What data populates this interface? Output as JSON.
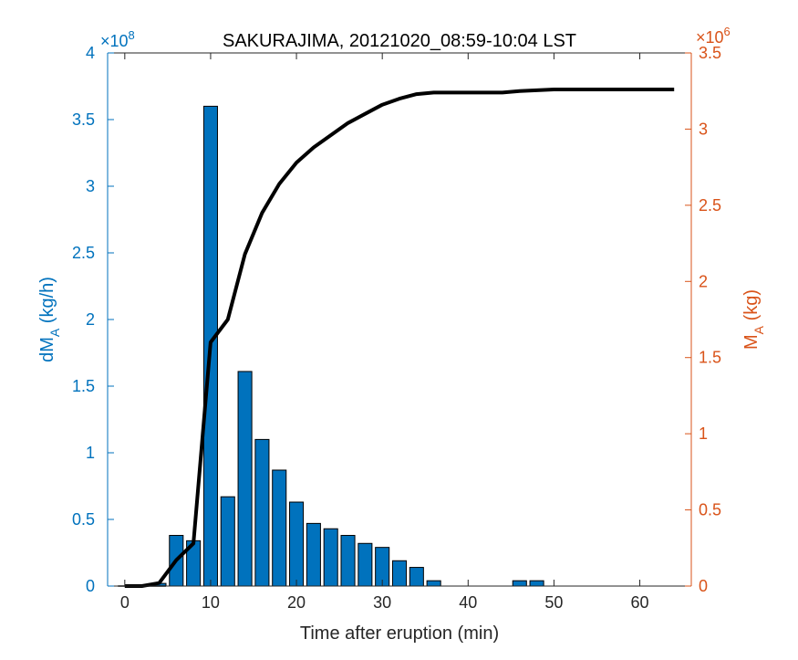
{
  "chart_data": {
    "type": "bar",
    "title": "SAKURAJIMA, 20121020_08:59-10:04 LST",
    "xlabel": "Time after eruption (min)",
    "xlim": [
      -2,
      66
    ],
    "xticks": [
      0,
      10,
      20,
      30,
      40,
      50,
      60
    ],
    "left_axis": {
      "label_main": "dM",
      "label_sub": "A",
      "label_unit": " (kg/h)",
      "exponent_base": "×10",
      "exponent": "8",
      "ylim": [
        0,
        4
      ],
      "ticks": [
        0,
        0.5,
        1,
        1.5,
        2,
        2.5,
        3,
        3.5,
        4
      ],
      "color": "#0072BD"
    },
    "right_axis": {
      "label_main": "M",
      "label_sub": "A",
      "label_unit": " (kg)",
      "exponent_base": "×10",
      "exponent": "6",
      "ylim": [
        0,
        3.5
      ],
      "ticks": [
        0,
        0.5,
        1,
        1.5,
        2,
        2.5,
        3,
        3.5
      ],
      "color": "#D95319"
    },
    "bars": {
      "x": [
        0,
        2,
        4,
        6,
        8,
        10,
        12,
        14,
        16,
        18,
        20,
        22,
        24,
        26,
        28,
        30,
        32,
        34,
        36,
        38,
        40,
        42,
        44,
        46,
        48
      ],
      "values": [
        0,
        0,
        0.02,
        0.38,
        0.34,
        3.6,
        0.67,
        1.61,
        1.1,
        0.87,
        0.63,
        0.47,
        0.43,
        0.38,
        0.32,
        0.29,
        0.19,
        0.14,
        0.04,
        0,
        0,
        0,
        0,
        0.04,
        0.04
      ],
      "color": "#0072BD",
      "edge_color": "#000000"
    },
    "line": {
      "x": [
        0,
        2,
        4,
        6,
        8,
        10,
        12,
        14,
        16,
        18,
        20,
        22,
        24,
        26,
        28,
        30,
        32,
        34,
        36,
        38,
        40,
        42,
        44,
        46,
        48,
        50,
        52,
        54,
        56,
        58,
        60,
        62,
        64
      ],
      "values": [
        0,
        0,
        0.02,
        0.17,
        0.28,
        1.6,
        1.75,
        2.18,
        2.45,
        2.64,
        2.78,
        2.88,
        2.96,
        3.04,
        3.1,
        3.16,
        3.2,
        3.23,
        3.24,
        3.24,
        3.24,
        3.24,
        3.24,
        3.25,
        3.255,
        3.26,
        3.26,
        3.26,
        3.26,
        3.26,
        3.26,
        3.26,
        3.26
      ],
      "color": "#000000"
    }
  }
}
